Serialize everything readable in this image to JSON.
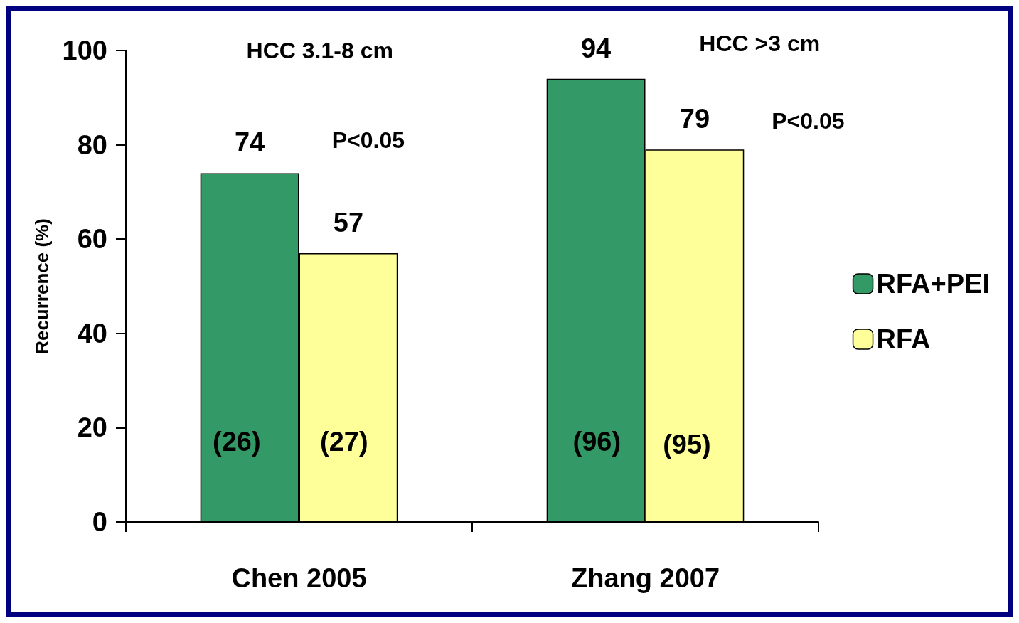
{
  "chart_data": {
    "type": "bar",
    "ylabel": "Recurrence (%)",
    "categories": [
      "Chen 2005",
      "Zhang 2007"
    ],
    "series": [
      {
        "name": "RFA+PEI",
        "color": "#339966",
        "values": [
          74,
          94
        ]
      },
      {
        "name": "RFA",
        "color": "#ffff99",
        "values": [
          57,
          79
        ]
      }
    ],
    "ylim": [
      0,
      100
    ],
    "yticks": [
      0,
      20,
      40,
      60,
      80,
      100
    ],
    "data_labels": true,
    "grid": false,
    "legend": "right",
    "annotations": [
      "HCC 3.1-8 cm",
      "P<0.05",
      "(26)",
      "(27)",
      "HCC >3 cm",
      "P<0.05",
      "(96)",
      "(95)"
    ]
  }
}
